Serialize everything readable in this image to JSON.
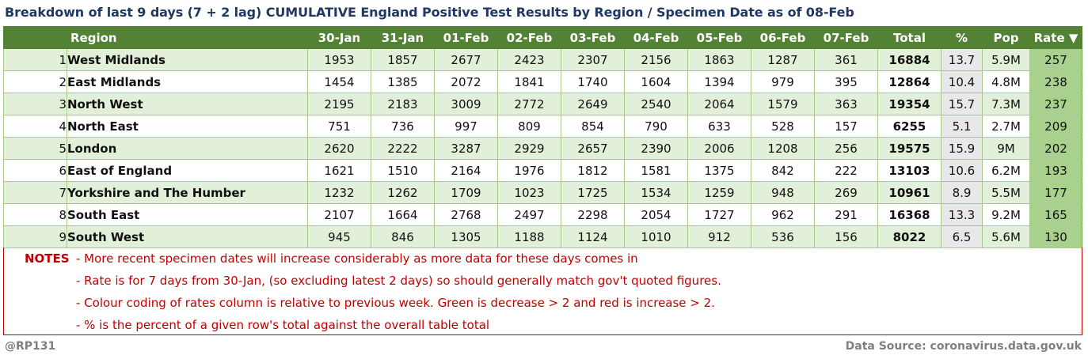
{
  "title": "Breakdown of last 9 days (7 + 2 lag) CUMULATIVE England Positive Test Results by Region / Specimen Date as of 08-Feb",
  "columns": {
    "region": "Region",
    "d1": "30-Jan",
    "d2": "31-Jan",
    "d3": "01-Feb",
    "d4": "02-Feb",
    "d5": "03-Feb",
    "d6": "04-Feb",
    "d7": "05-Feb",
    "d8": "06-Feb",
    "d9": "07-Feb",
    "total": "Total",
    "pct": "%",
    "pop": "Pop",
    "rate": "Rate ▼"
  },
  "rows": [
    {
      "n": "1",
      "region": "West Midlands",
      "d1": "1953",
      "d2": "1857",
      "d3": "2677",
      "d4": "2423",
      "d5": "2307",
      "d6": "2156",
      "d7": "1863",
      "d8": "1287",
      "d9": "361",
      "total": "16884",
      "pct": "13.7",
      "pop": "5.9M",
      "rate": "257"
    },
    {
      "n": "2",
      "region": "East Midlands",
      "d1": "1454",
      "d2": "1385",
      "d3": "2072",
      "d4": "1841",
      "d5": "1740",
      "d6": "1604",
      "d7": "1394",
      "d8": "979",
      "d9": "395",
      "total": "12864",
      "pct": "10.4",
      "pop": "4.8M",
      "rate": "238"
    },
    {
      "n": "3",
      "region": "North West",
      "d1": "2195",
      "d2": "2183",
      "d3": "3009",
      "d4": "2772",
      "d5": "2649",
      "d6": "2540",
      "d7": "2064",
      "d8": "1579",
      "d9": "363",
      "total": "19354",
      "pct": "15.7",
      "pop": "7.3M",
      "rate": "237"
    },
    {
      "n": "4",
      "region": "North East",
      "d1": "751",
      "d2": "736",
      "d3": "997",
      "d4": "809",
      "d5": "854",
      "d6": "790",
      "d7": "633",
      "d8": "528",
      "d9": "157",
      "total": "6255",
      "pct": "5.1",
      "pop": "2.7M",
      "rate": "209"
    },
    {
      "n": "5",
      "region": "London",
      "d1": "2620",
      "d2": "2222",
      "d3": "3287",
      "d4": "2929",
      "d5": "2657",
      "d6": "2390",
      "d7": "2006",
      "d8": "1208",
      "d9": "256",
      "total": "19575",
      "pct": "15.9",
      "pop": "9M",
      "rate": "202"
    },
    {
      "n": "6",
      "region": "East of England",
      "d1": "1621",
      "d2": "1510",
      "d3": "2164",
      "d4": "1976",
      "d5": "1812",
      "d6": "1581",
      "d7": "1375",
      "d8": "842",
      "d9": "222",
      "total": "13103",
      "pct": "10.6",
      "pop": "6.2M",
      "rate": "193"
    },
    {
      "n": "7",
      "region": "Yorkshire and The Humber",
      "d1": "1232",
      "d2": "1262",
      "d3": "1709",
      "d4": "1023",
      "d5": "1725",
      "d6": "1534",
      "d7": "1259",
      "d8": "948",
      "d9": "269",
      "total": "10961",
      "pct": "8.9",
      "pop": "5.5M",
      "rate": "177"
    },
    {
      "n": "8",
      "region": "South East",
      "d1": "2107",
      "d2": "1664",
      "d3": "2768",
      "d4": "2497",
      "d5": "2298",
      "d6": "2054",
      "d7": "1727",
      "d8": "962",
      "d9": "291",
      "total": "16368",
      "pct": "13.3",
      "pop": "9.2M",
      "rate": "165"
    },
    {
      "n": "9",
      "region": "South West",
      "d1": "945",
      "d2": "846",
      "d3": "1305",
      "d4": "1188",
      "d5": "1124",
      "d6": "1010",
      "d7": "912",
      "d8": "536",
      "d9": "156",
      "total": "8022",
      "pct": "6.5",
      "pop": "5.6M",
      "rate": "130"
    }
  ],
  "notes": {
    "label": "NOTES",
    "lines": [
      "- More recent specimen dates will increase considerably as more data for these days comes in",
      "- Rate is for 7 days from 30-Jan, (so excluding latest 2 days) so should generally match gov't quoted figures.",
      "- Colour coding of rates column is relative to previous week. Green is decrease > 2 and red is increase > 2.",
      "- % is the percent of a given row's total against the overall table total"
    ]
  },
  "footer": {
    "credit": "@RP131",
    "source": "Data Source: coronavirus.data.gov.uk"
  },
  "colors": {
    "header_bg": "#548235",
    "row_alt_bg": "#e2efd9",
    "rate_bg": "#a9d18e",
    "notes_red": "#c00000",
    "title": "#1f3864"
  }
}
